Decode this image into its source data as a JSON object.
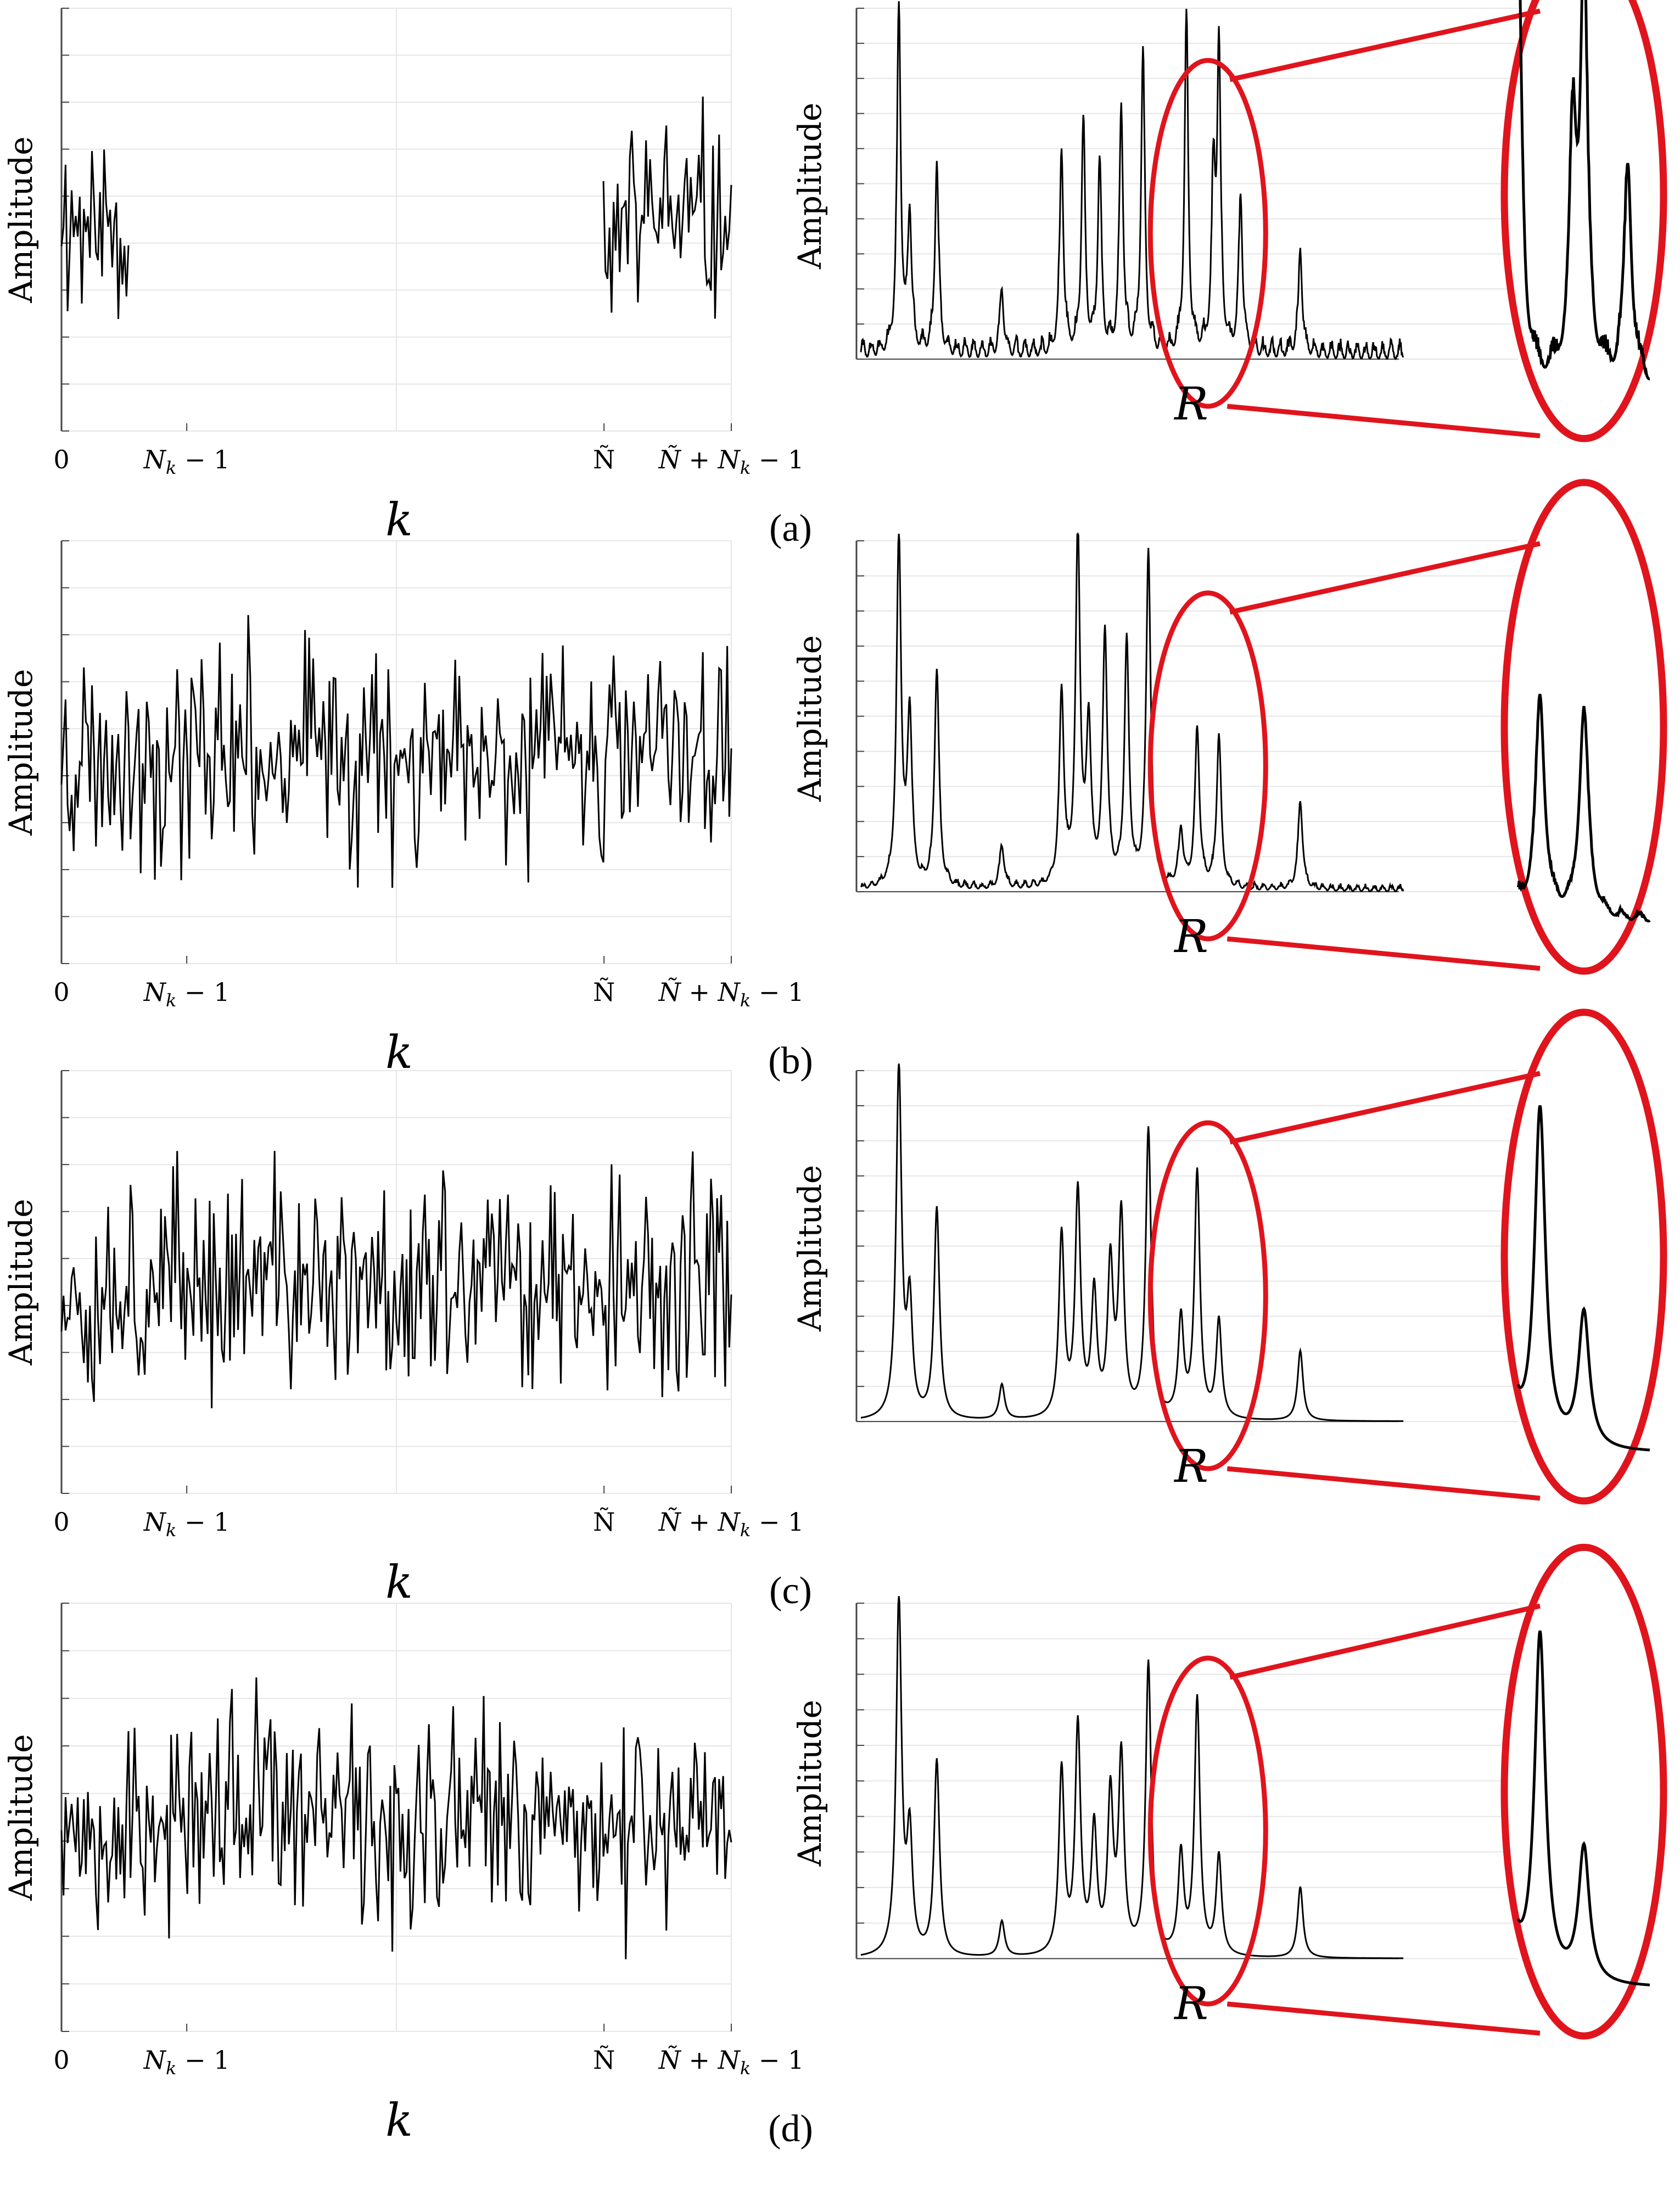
{
  "chart_data": [
    {
      "panel": "(a)",
      "left": {
        "type": "line",
        "ylabel": "Amplitude",
        "xlabel": "k",
        "xticks": [
          "0",
          "N_k − 1",
          "Ñ",
          "Ñ + N_k − 1"
        ],
        "description_values": "random-looking time-domain samples; only first N_k and last N_k samples present (gap between)",
        "segments": [
          [
            0,
            0.1
          ],
          [
            0.81,
            1.0
          ]
        ],
        "seed": 11
      },
      "right": {
        "type": "line",
        "ylabel": "Amplitude",
        "xlabel": "R",
        "peaks_x": [
          0.07,
          0.09,
          0.14,
          0.26,
          0.37,
          0.41,
          0.44,
          0.48,
          0.52,
          0.6,
          0.65,
          0.66,
          0.7,
          0.81
        ],
        "peaks_h": [
          1.0,
          0.4,
          0.55,
          0.18,
          0.58,
          0.65,
          0.54,
          0.7,
          0.86,
          0.96,
          0.48,
          0.85,
          0.45,
          0.3
        ],
        "noise": 0.04,
        "width": 0.004
      }
    },
    {
      "panel": "(b)",
      "left": {
        "type": "line",
        "ylabel": "Amplitude",
        "xlabel": "k",
        "xticks": [
          "0",
          "N_k − 1",
          "Ñ",
          "Ñ + N_k − 1"
        ],
        "segments": [
          [
            0,
            1.0
          ]
        ],
        "seed": 23
      },
      "right": {
        "type": "line",
        "ylabel": "Amplitude",
        "xlabel": "R",
        "peaks_x": [
          0.07,
          0.09,
          0.14,
          0.26,
          0.37,
          0.4,
          0.42,
          0.45,
          0.49,
          0.53,
          0.59,
          0.62,
          0.66,
          0.81
        ],
        "peaks_h": [
          1.0,
          0.49,
          0.62,
          0.12,
          0.55,
          1.0,
          0.45,
          0.72,
          0.69,
          0.96,
          0.16,
          0.45,
          0.43,
          0.25
        ],
        "noise": 0.015,
        "width": 0.005
      }
    },
    {
      "panel": "(c)",
      "left": {
        "type": "line",
        "ylabel": "Amplitude",
        "xlabel": "k",
        "xticks": [
          "0",
          "N_k − 1",
          "Ñ",
          "Ñ + N_k − 1"
        ],
        "segments": [
          [
            0,
            1.0
          ]
        ],
        "seed": 37
      },
      "right": {
        "type": "line",
        "ylabel": "Amplitude",
        "xlabel": "R",
        "peaks_x": [
          0.07,
          0.09,
          0.14,
          0.26,
          0.37,
          0.4,
          0.43,
          0.46,
          0.48,
          0.53,
          0.59,
          0.62,
          0.66,
          0.81
        ],
        "peaks_h": [
          1.0,
          0.32,
          0.6,
          0.1,
          0.52,
          0.64,
          0.35,
          0.43,
          0.57,
          0.82,
          0.28,
          0.7,
          0.28,
          0.2
        ],
        "noise": 0.0,
        "width": 0.006
      }
    },
    {
      "panel": "(d)",
      "left": {
        "type": "line",
        "ylabel": "Amplitude",
        "xlabel": "k",
        "xticks": [
          "0",
          "N_k − 1",
          "Ñ",
          "Ñ + N_k − 1"
        ],
        "segments": [
          [
            0,
            1.0
          ]
        ],
        "seed": 53
      },
      "right": {
        "type": "line",
        "ylabel": "Amplitude",
        "xlabel": "R",
        "peaks_x": [
          0.07,
          0.09,
          0.14,
          0.26,
          0.37,
          0.4,
          0.43,
          0.46,
          0.48,
          0.53,
          0.59,
          0.62,
          0.66,
          0.81
        ],
        "peaks_h": [
          1.0,
          0.33,
          0.55,
          0.1,
          0.52,
          0.64,
          0.35,
          0.44,
          0.55,
          0.82,
          0.28,
          0.72,
          0.28,
          0.2
        ],
        "noise": 0.0,
        "width": 0.006
      }
    }
  ],
  "colors": {
    "line": "#000000",
    "highlight": "#e0141c",
    "grid": "#e6e6e6"
  }
}
